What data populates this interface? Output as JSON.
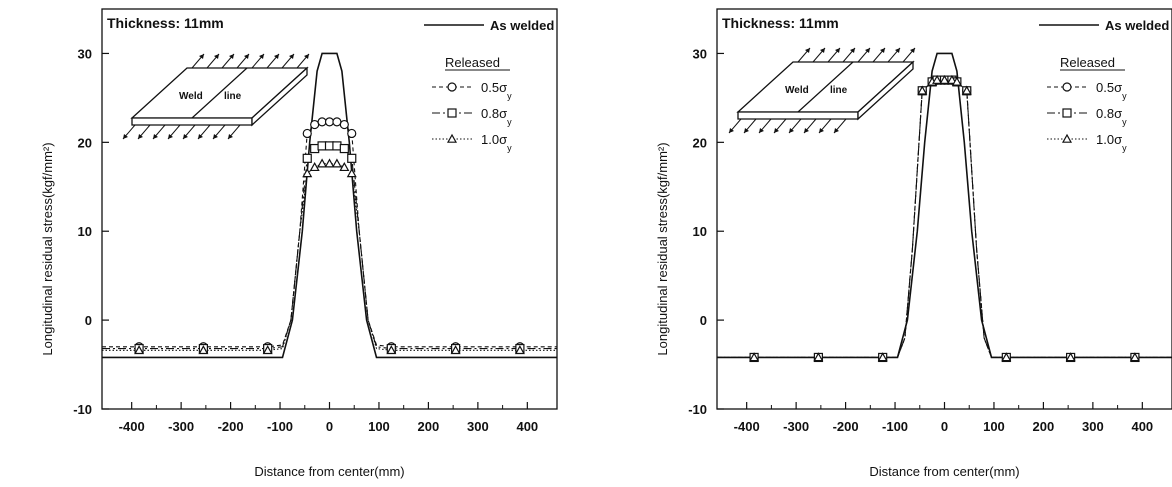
{
  "chart_data": [
    {
      "type": "line",
      "title": "Thickness: 11mm",
      "xlabel": "Distance from center(mm)",
      "ylabel": "Longitudinal residual stress(kgf/mm²)",
      "xlim": [
        -460,
        460
      ],
      "ylim": [
        -10,
        35
      ],
      "xticks": [
        -400,
        -300,
        -200,
        -100,
        0,
        100,
        200,
        300,
        400
      ],
      "yticks": [
        -10,
        0,
        10,
        20,
        30
      ],
      "legend_position": "top-right",
      "inset": {
        "text_weld": "Weld",
        "text_line": "line"
      },
      "released_label": "Released",
      "series": [
        {
          "name": "As welded",
          "marker": "none",
          "dash": "solid",
          "color": "#111111",
          "x": [
            -460,
            -95,
            -75,
            -55,
            -40,
            -25,
            -15,
            0,
            15,
            25,
            40,
            55,
            75,
            95,
            460
          ],
          "y": [
            -4.2,
            -4.2,
            0,
            10,
            20,
            28,
            30,
            30,
            30,
            28,
            20,
            10,
            0,
            -4.2,
            -4.2
          ]
        },
        {
          "name": "0.5σ",
          "sub": "y",
          "marker": "circle",
          "dash": "4,3",
          "color": "#111111",
          "x": [
            -460,
            -385,
            -255,
            -125,
            -95,
            -78,
            -60,
            -45,
            -30,
            -15,
            0,
            15,
            30,
            45,
            60,
            78,
            95,
            125,
            255,
            385,
            460
          ],
          "y": [
            -3.0,
            -3.0,
            -3.0,
            -3.0,
            -2.8,
            0,
            10,
            21,
            22,
            22.3,
            22.3,
            22.3,
            22,
            21,
            10,
            0,
            -2.8,
            -3.0,
            -3.0,
            -3.0,
            -3.0
          ]
        },
        {
          "name": "0.8σ",
          "sub": "y",
          "marker": "square",
          "dash": "8,3,2,3",
          "color": "#111111",
          "x": [
            -460,
            -385,
            -255,
            -125,
            -95,
            -78,
            -60,
            -45,
            -30,
            -15,
            0,
            15,
            30,
            45,
            60,
            78,
            95,
            125,
            255,
            385,
            460
          ],
          "y": [
            -3.2,
            -3.2,
            -3.2,
            -3.2,
            -3.0,
            0,
            10,
            18.2,
            19.3,
            19.6,
            19.6,
            19.6,
            19.3,
            18.2,
            10,
            0,
            -3.0,
            -3.2,
            -3.2,
            -3.2,
            -3.2
          ]
        },
        {
          "name": "1.0σ",
          "sub": "y",
          "marker": "triangle",
          "dash": "1.5,2",
          "color": "#111111",
          "x": [
            -460,
            -385,
            -255,
            -125,
            -95,
            -78,
            -60,
            -45,
            -30,
            -15,
            0,
            15,
            30,
            45,
            60,
            78,
            95,
            125,
            255,
            385,
            460
          ],
          "y": [
            -3.4,
            -3.4,
            -3.4,
            -3.4,
            -3.2,
            0,
            10,
            16.5,
            17.2,
            17.6,
            17.6,
            17.6,
            17.2,
            16.5,
            10,
            0,
            -3.2,
            -3.4,
            -3.4,
            -3.4,
            -3.4
          ]
        }
      ]
    },
    {
      "type": "line",
      "title": "Thickness: 11mm",
      "xlabel": "Distance from center(mm)",
      "ylabel": "Longitudinal residual stress(kgf/mm²)",
      "xlim": [
        -460,
        460
      ],
      "ylim": [
        -10,
        35
      ],
      "xticks": [
        -400,
        -300,
        -200,
        -100,
        0,
        100,
        200,
        300,
        400
      ],
      "yticks": [
        -10,
        0,
        10,
        20,
        30
      ],
      "legend_position": "top-right",
      "inset": {
        "text_weld": "Weld",
        "text_line": "line"
      },
      "released_label": "Released",
      "series": [
        {
          "name": "As welded",
          "marker": "none",
          "dash": "solid",
          "color": "#111111",
          "x": [
            -460,
            -95,
            -75,
            -55,
            -40,
            -25,
            -15,
            0,
            15,
            25,
            40,
            55,
            75,
            95,
            460
          ],
          "y": [
            -4.2,
            -4.2,
            0,
            10,
            20,
            28,
            30,
            30,
            30,
            28,
            20,
            10,
            0,
            -4.2,
            -4.2
          ]
        },
        {
          "name": "0.5σ",
          "sub": "y",
          "marker": "circle",
          "dash": "4,3",
          "color": "#111111",
          "x": [
            -460,
            -385,
            -255,
            -125,
            -95,
            -80,
            -65,
            -45,
            -25,
            -15,
            0,
            15,
            25,
            45,
            65,
            80,
            95,
            125,
            255,
            385,
            460
          ],
          "y": [
            -4.2,
            -4.2,
            -4.2,
            -4.2,
            -4.2,
            -2,
            8,
            25.8,
            26.8,
            27,
            27,
            27,
            26.8,
            25.8,
            8,
            -2,
            -4.2,
            -4.2,
            -4.2,
            -4.2,
            -4.2
          ]
        },
        {
          "name": "0.8σ",
          "sub": "y",
          "marker": "square",
          "dash": "8,3,2,3",
          "color": "#111111",
          "x": [
            -460,
            -385,
            -255,
            -125,
            -95,
            -80,
            -65,
            -45,
            -25,
            -15,
            0,
            15,
            25,
            45,
            65,
            80,
            95,
            125,
            255,
            385,
            460
          ],
          "y": [
            -4.2,
            -4.2,
            -4.2,
            -4.2,
            -4.2,
            -2,
            8,
            25.8,
            26.8,
            27,
            27,
            27,
            26.8,
            25.8,
            8,
            -2,
            -4.2,
            -4.2,
            -4.2,
            -4.2,
            -4.2
          ]
        },
        {
          "name": "1.0σ",
          "sub": "y",
          "marker": "triangle",
          "dash": "1.5,2",
          "color": "#111111",
          "x": [
            -460,
            -385,
            -255,
            -125,
            -95,
            -80,
            -65,
            -45,
            -25,
            -15,
            0,
            15,
            25,
            45,
            65,
            80,
            95,
            125,
            255,
            385,
            460
          ],
          "y": [
            -4.2,
            -4.2,
            -4.2,
            -4.2,
            -4.2,
            -2,
            8,
            25.8,
            26.8,
            27,
            27,
            27,
            26.8,
            25.8,
            8,
            -2,
            -4.2,
            -4.2,
            -4.2,
            -4.2,
            -4.2
          ]
        }
      ]
    }
  ]
}
